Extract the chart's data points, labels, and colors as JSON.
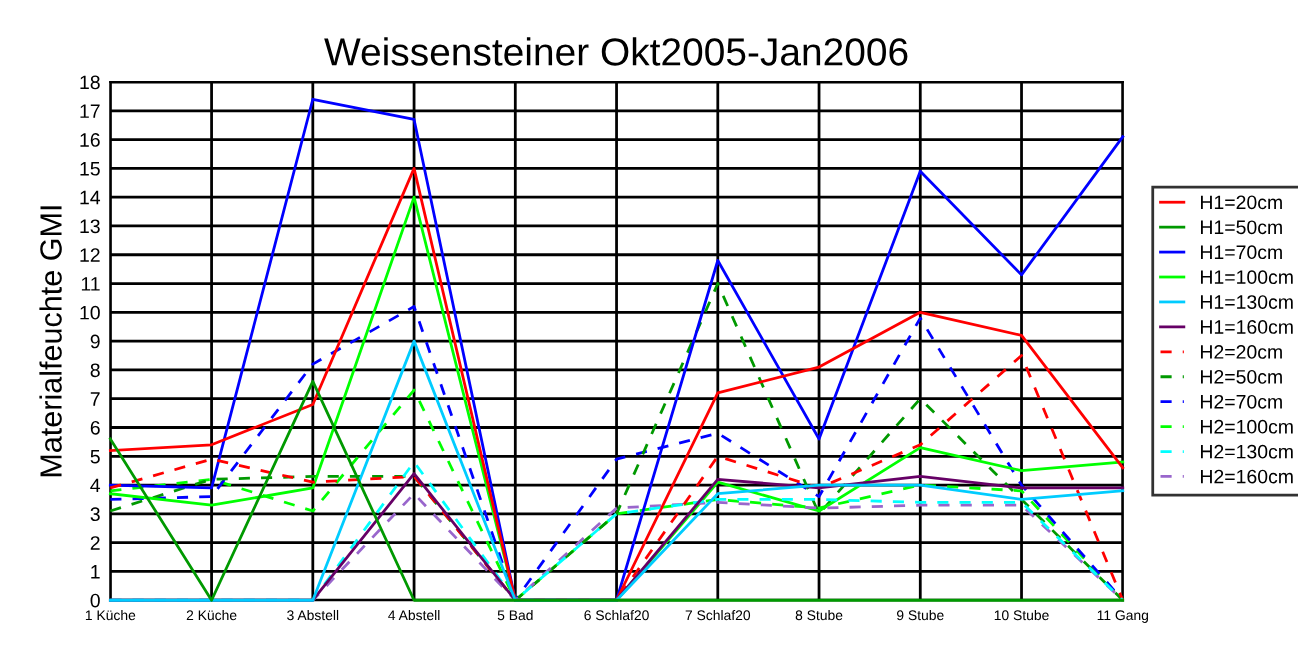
{
  "chart_data": {
    "type": "line",
    "title": "Weissensteiner Okt2005-Jan2006",
    "ylabel": "Materialfeuchte GMI",
    "categories": [
      "1 Küche",
      "2 Küche",
      "3 Abstell",
      "4 Abstell",
      "5 Bad",
      "6 Schlaf20",
      "7 Schlaf20",
      "8 Stube",
      "9 Stube",
      "10 Stube",
      "11 Gang"
    ],
    "ylim": [
      0,
      18
    ],
    "yticks": [
      0,
      1,
      2,
      3,
      4,
      5,
      6,
      7,
      8,
      9,
      10,
      11,
      12,
      13,
      14,
      15,
      16,
      17,
      18
    ],
    "grid": true,
    "legend": "right",
    "marker": "none",
    "series": [
      {
        "name": "H1=20cm",
        "color": "#ff0000",
        "line_style": "solid",
        "values": [
          5.2,
          5.4,
          6.8,
          15,
          0,
          0,
          7.2,
          8.1,
          10,
          9.2,
          4.6
        ]
      },
      {
        "name": "H1=50cm",
        "color": "#009900",
        "line_style": "solid",
        "values": [
          5.6,
          0,
          7.6,
          0,
          0,
          0,
          0,
          0,
          0,
          0,
          0
        ]
      },
      {
        "name": "H1=70cm",
        "color": "#0000ff",
        "line_style": "solid",
        "values": [
          4,
          3.9,
          17.4,
          16.7,
          0,
          0,
          11.8,
          5.6,
          14.9,
          11.3,
          16.1
        ]
      },
      {
        "name": "H1=100cm",
        "color": "#00ff00",
        "line_style": "solid",
        "values": [
          3.7,
          3.3,
          3.9,
          14,
          0,
          0,
          4.1,
          3.1,
          5.3,
          4.5,
          4.8
        ]
      },
      {
        "name": "H1=130cm",
        "color": "#00ccff",
        "line_style": "solid",
        "values": [
          0,
          0,
          0,
          9,
          0,
          0,
          3.7,
          4,
          4,
          3.5,
          3.8
        ]
      },
      {
        "name": "H1=160cm",
        "color": "#660066",
        "line_style": "solid",
        "values": [
          0,
          0,
          0,
          4.4,
          0,
          0,
          4.2,
          3.9,
          4.3,
          3.9,
          3.9
        ]
      },
      {
        "name": "H2=20cm",
        "color": "#ff0000",
        "line_style": "dashed",
        "values": [
          3.9,
          4.9,
          4.1,
          4.3,
          0,
          0,
          5,
          3.9,
          5.4,
          8.5,
          0
        ]
      },
      {
        "name": "H2=50cm",
        "color": "#009900",
        "line_style": "dashed",
        "values": [
          3.1,
          4.2,
          4.3,
          4.3,
          0,
          3,
          11,
          3,
          7,
          3.5,
          0
        ]
      },
      {
        "name": "H2=70cm",
        "color": "#0000ff",
        "line_style": "dashed",
        "values": [
          3.5,
          3.6,
          8.2,
          10.2,
          0,
          4.9,
          5.8,
          3.6,
          9.8,
          4,
          0
        ]
      },
      {
        "name": "H2=100cm",
        "color": "#00ff00",
        "line_style": "dashed",
        "values": [
          3.8,
          4.2,
          3.1,
          7.3,
          0,
          3,
          3.5,
          3.2,
          4,
          3.8,
          0
        ]
      },
      {
        "name": "H2=130cm",
        "color": "#00ffff",
        "line_style": "dashed",
        "values": [
          0,
          0,
          0,
          4.8,
          0,
          3,
          3.5,
          3.5,
          3.4,
          3.4,
          0
        ]
      },
      {
        "name": "H2=160cm",
        "color": "#9966cc",
        "line_style": "dashed",
        "values": [
          0,
          0,
          0,
          3.7,
          0,
          3.2,
          3.4,
          3.2,
          3.3,
          3.3,
          0
        ]
      }
    ]
  }
}
